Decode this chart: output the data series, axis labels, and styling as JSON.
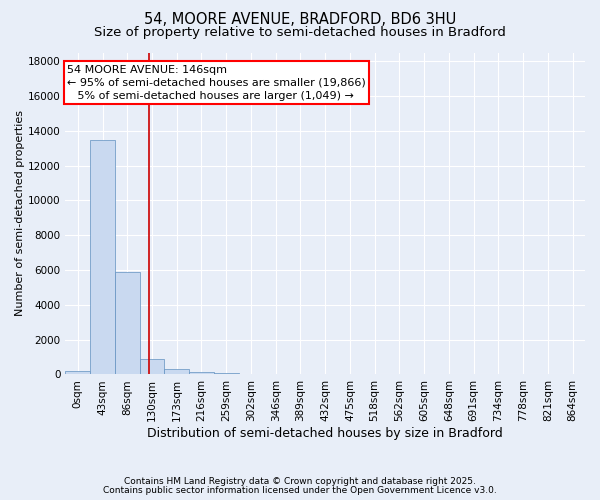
{
  "title_line1": "54, MOORE AVENUE, BRADFORD, BD6 3HU",
  "title_line2": "Size of property relative to semi-detached houses in Bradford",
  "xlabel": "Distribution of semi-detached houses by size in Bradford",
  "ylabel": "Number of semi-detached properties",
  "footer_line1": "Contains HM Land Registry data © Crown copyright and database right 2025.",
  "footer_line2": "Contains public sector information licensed under the Open Government Licence v3.0.",
  "bin_labels": [
    "0sqm",
    "43sqm",
    "86sqm",
    "130sqm",
    "173sqm",
    "216sqm",
    "259sqm",
    "302sqm",
    "346sqm",
    "389sqm",
    "432sqm",
    "475sqm",
    "518sqm",
    "562sqm",
    "605sqm",
    "648sqm",
    "691sqm",
    "734sqm",
    "778sqm",
    "821sqm",
    "864sqm"
  ],
  "bin_values": [
    200,
    13500,
    5900,
    900,
    300,
    150,
    100,
    0,
    0,
    0,
    0,
    0,
    0,
    0,
    0,
    0,
    0,
    0,
    0,
    0,
    0
  ],
  "bar_color": "#c9d9f0",
  "bar_edgecolor": "#6090c0",
  "bar_width": 1.0,
  "red_line_color": "#cc0000",
  "property_size": 146,
  "bin_size": 43,
  "annotation_line1": "54 MOORE AVENUE: 146sqm",
  "annotation_line2": "← 95% of semi-detached houses are smaller (19,866)",
  "annotation_line3": "   5% of semi-detached houses are larger (1,049) →",
  "ylim_max": 18500,
  "yticks": [
    0,
    2000,
    4000,
    6000,
    8000,
    10000,
    12000,
    14000,
    16000,
    18000
  ],
  "background_color": "#e8eef8",
  "plot_background": "#e8eef8",
  "grid_color": "#ffffff",
  "title_fontsize": 10.5,
  "subtitle_fontsize": 9.5,
  "tick_fontsize": 7.5,
  "ylabel_fontsize": 8,
  "xlabel_fontsize": 9,
  "annotation_fontsize": 8,
  "footer_fontsize": 6.5
}
